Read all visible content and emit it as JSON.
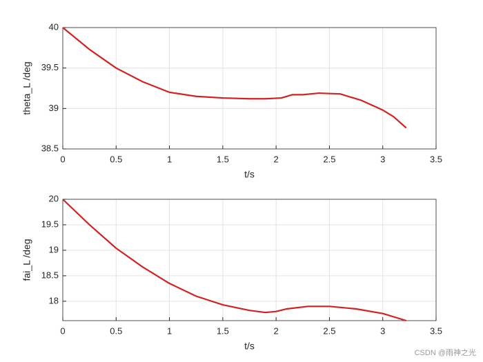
{
  "chart_data": [
    {
      "type": "line",
      "ylabel": "theta_L /deg",
      "xlabel": "t/s",
      "x": [
        0,
        0.25,
        0.5,
        0.75,
        1,
        1.25,
        1.5,
        1.75,
        1.9,
        2.05,
        2.15,
        2.25,
        2.4,
        2.6,
        2.8,
        3.0,
        3.1,
        3.22
      ],
      "series": [
        {
          "color": "#d42020",
          "values": [
            40,
            39.73,
            39.5,
            39.33,
            39.2,
            39.15,
            39.13,
            39.12,
            39.12,
            39.13,
            39.17,
            39.17,
            39.19,
            39.18,
            39.1,
            38.98,
            38.9,
            38.76
          ]
        }
      ],
      "xlim": [
        0,
        3.5
      ],
      "xticks": [
        0,
        0.5,
        1,
        1.5,
        2,
        2.5,
        3,
        3.5
      ],
      "ylim": [
        38.5,
        40
      ],
      "yticks": [
        38.5,
        39,
        39.5,
        40
      ],
      "grid": true
    },
    {
      "type": "line",
      "ylabel": "fai_L /deg",
      "xlabel": "t/s",
      "x": [
        0,
        0.25,
        0.5,
        0.75,
        1,
        1.25,
        1.5,
        1.75,
        1.9,
        2.0,
        2.1,
        2.3,
        2.5,
        2.75,
        3.0,
        3.22
      ],
      "series": [
        {
          "color": "#d42020",
          "values": [
            20,
            19.5,
            19.04,
            18.67,
            18.35,
            18.1,
            17.93,
            17.82,
            17.78,
            17.8,
            17.85,
            17.9,
            17.9,
            17.85,
            17.76,
            17.62
          ]
        }
      ],
      "xlim": [
        0,
        3.5
      ],
      "xticks": [
        0,
        0.5,
        1,
        1.5,
        2,
        2.5,
        3,
        3.5
      ],
      "ylim": [
        17.62,
        20
      ],
      "yticks": [
        18,
        18.5,
        19,
        19.5,
        20
      ],
      "grid": true
    }
  ],
  "watermark": "CSDN @雨神之光"
}
